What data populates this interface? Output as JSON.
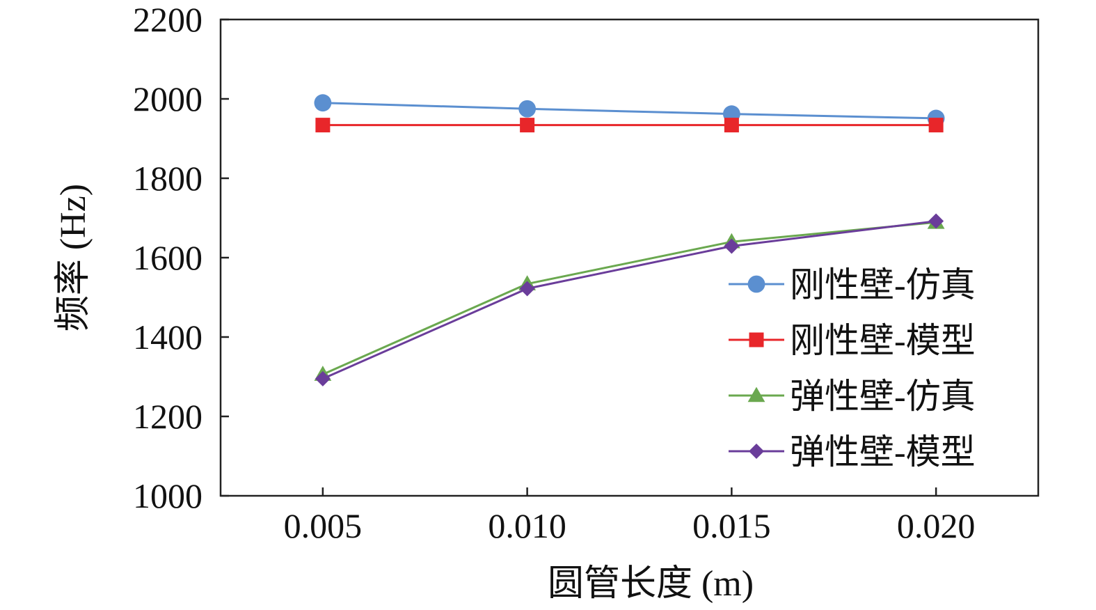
{
  "chart_data": {
    "type": "line",
    "title": "",
    "xlabel": "圆管长度 (m)",
    "ylabel": "频率 (Hz)",
    "x": [
      0.005,
      0.01,
      0.015,
      0.02
    ],
    "x_tick_labels": [
      "0.005",
      "0.010",
      "0.015",
      "0.020"
    ],
    "xlim": [
      0.0025,
      0.0225
    ],
    "ylim": [
      1000,
      2200
    ],
    "y_ticks": [
      1000,
      1200,
      1400,
      1600,
      1800,
      2000,
      2200
    ],
    "grid": false,
    "legend_position": "right",
    "series": [
      {
        "name": "刚性壁-仿真",
        "values": [
          1990,
          1975,
          1962,
          1951
        ],
        "color": "#5b8fd0",
        "marker": "circle"
      },
      {
        "name": "刚性壁-模型",
        "values": [
          1934,
          1934,
          1934,
          1934
        ],
        "color": "#e8262a",
        "marker": "square"
      },
      {
        "name": "弹性壁-仿真",
        "values": [
          1306,
          1534,
          1640,
          1689
        ],
        "color": "#6aa84f",
        "marker": "triangle"
      },
      {
        "name": "弹性壁-模型",
        "values": [
          1295,
          1522,
          1629,
          1692
        ],
        "color": "#6a3d9a",
        "marker": "diamond"
      }
    ]
  }
}
